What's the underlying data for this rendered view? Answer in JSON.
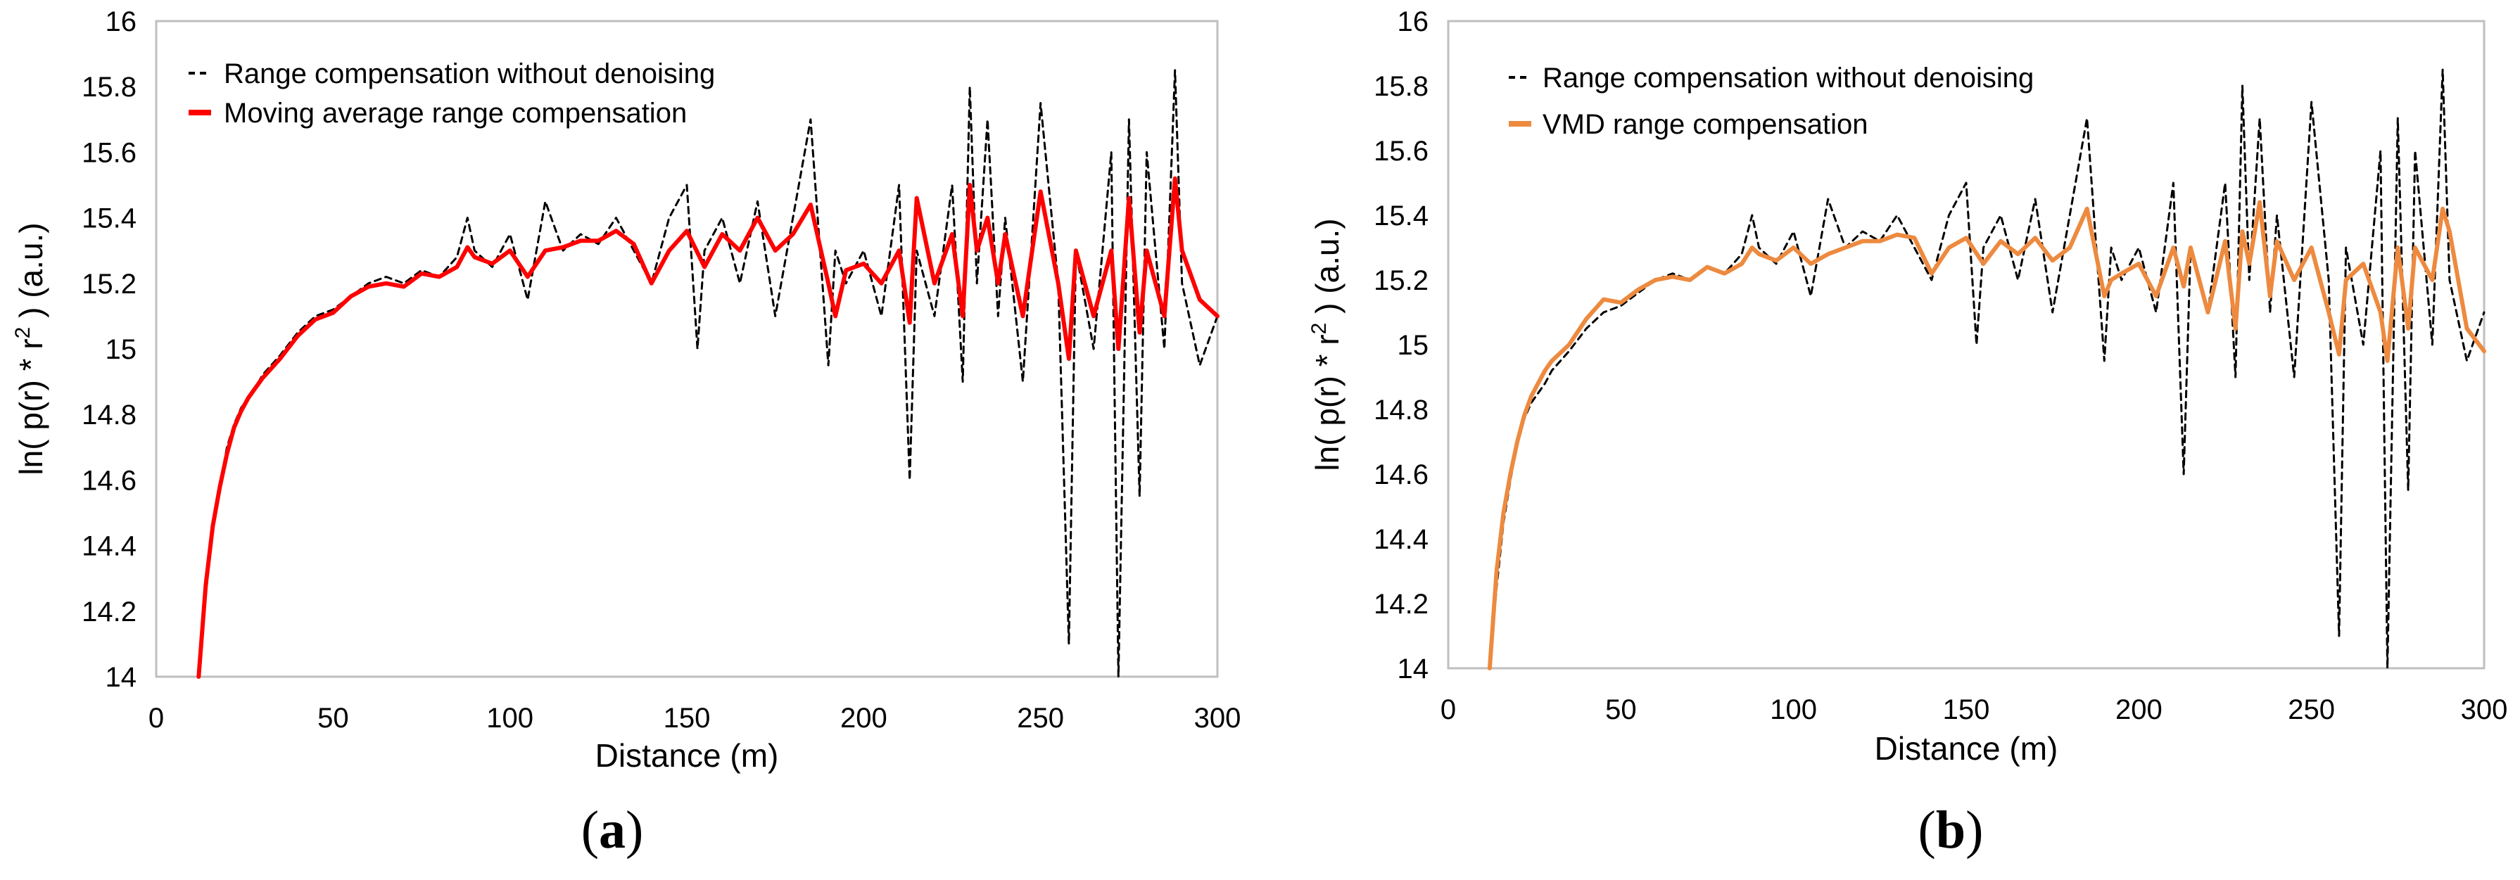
{
  "chart_data": [
    {
      "type": "line",
      "panel_label": "a",
      "title": "",
      "xlabel": "Distance (m)",
      "ylabel": "ln( p(r) * r",
      "ylabel_superscript": "2",
      "ylabel_suffix": " ) (a.u.)",
      "xlim": [
        0,
        300
      ],
      "ylim": [
        14,
        16
      ],
      "xticks": [
        0,
        50,
        100,
        150,
        200,
        250,
        300
      ],
      "yticks": [
        14,
        14.2,
        14.4,
        14.6,
        14.8,
        15,
        15.2,
        15.4,
        15.6,
        15.8,
        16
      ],
      "grid": false,
      "legend": "top-left",
      "series": [
        {
          "name": "Range compensation without denoising",
          "color": "#000000",
          "style": "dashed",
          "x": [
            12,
            14,
            16,
            18,
            20,
            22,
            24,
            26,
            28,
            30,
            35,
            40,
            45,
            50,
            55,
            60,
            65,
            70,
            75,
            80,
            85,
            88,
            90,
            95,
            100,
            105,
            110,
            115,
            120,
            125,
            130,
            135,
            140,
            145,
            150,
            153,
            155,
            160,
            165,
            170,
            175,
            180,
            185,
            190,
            192,
            195,
            200,
            205,
            210,
            213,
            215,
            220,
            225,
            228,
            230,
            232,
            235,
            238,
            240,
            245,
            250,
            255,
            258,
            260,
            265,
            270,
            272,
            275,
            278,
            280,
            285,
            288,
            290,
            295,
            300
          ],
          "values": [
            14.0,
            14.25,
            14.45,
            14.58,
            14.7,
            14.77,
            14.82,
            14.85,
            14.88,
            14.92,
            14.98,
            15.05,
            15.1,
            15.12,
            15.16,
            15.2,
            15.22,
            15.2,
            15.24,
            15.22,
            15.28,
            15.4,
            15.3,
            15.25,
            15.35,
            15.15,
            15.45,
            15.3,
            15.35,
            15.32,
            15.4,
            15.3,
            15.2,
            15.4,
            15.5,
            15.0,
            15.3,
            15.4,
            15.2,
            15.45,
            15.1,
            15.4,
            15.7,
            14.95,
            15.3,
            15.2,
            15.3,
            15.1,
            15.5,
            14.6,
            15.3,
            15.1,
            15.5,
            14.9,
            15.8,
            15.2,
            15.7,
            15.1,
            15.4,
            14.9,
            15.75,
            15.2,
            14.1,
            15.3,
            15.0,
            15.6,
            14.0,
            15.7,
            14.55,
            15.6,
            15.0,
            15.85,
            15.2,
            14.95,
            15.1
          ]
        },
        {
          "name": "Moving average range compensation",
          "color": "#ff0000",
          "style": "solid",
          "x": [
            12,
            14,
            16,
            18,
            20,
            22,
            24,
            26,
            28,
            30,
            35,
            40,
            45,
            50,
            55,
            60,
            65,
            70,
            75,
            80,
            85,
            88,
            90,
            95,
            100,
            105,
            110,
            115,
            120,
            125,
            130,
            135,
            140,
            145,
            150,
            155,
            160,
            165,
            170,
            175,
            180,
            185,
            190,
            192,
            195,
            200,
            205,
            210,
            213,
            215,
            220,
            225,
            228,
            230,
            232,
            235,
            238,
            240,
            245,
            250,
            255,
            258,
            260,
            265,
            270,
            272,
            275,
            278,
            280,
            285,
            288,
            290,
            295,
            300
          ],
          "values": [
            14.0,
            14.28,
            14.46,
            14.58,
            14.68,
            14.76,
            14.81,
            14.85,
            14.88,
            14.91,
            14.97,
            15.04,
            15.09,
            15.11,
            15.16,
            15.19,
            15.2,
            15.19,
            15.23,
            15.22,
            15.25,
            15.31,
            15.28,
            15.26,
            15.3,
            15.22,
            15.3,
            15.31,
            15.33,
            15.33,
            15.36,
            15.32,
            15.2,
            15.3,
            15.36,
            15.25,
            15.35,
            15.3,
            15.4,
            15.3,
            15.35,
            15.44,
            15.2,
            15.1,
            15.24,
            15.26,
            15.2,
            15.3,
            15.08,
            15.46,
            15.2,
            15.35,
            15.1,
            15.5,
            15.3,
            15.4,
            15.2,
            15.35,
            15.1,
            15.48,
            15.2,
            14.97,
            15.3,
            15.1,
            15.3,
            15.0,
            15.46,
            15.05,
            15.3,
            15.1,
            15.52,
            15.3,
            15.15,
            15.1
          ]
        }
      ]
    },
    {
      "type": "line",
      "panel_label": "b",
      "title": "",
      "xlabel": "Distance (m)",
      "ylabel": "ln( p(r) * r",
      "ylabel_superscript": "2",
      "ylabel_suffix": " ) (a.u.)",
      "xlim": [
        0,
        300
      ],
      "ylim": [
        14,
        16
      ],
      "xticks": [
        0,
        50,
        100,
        150,
        200,
        250,
        300
      ],
      "yticks": [
        14,
        14.2,
        14.4,
        14.6,
        14.8,
        15,
        15.2,
        15.4,
        15.6,
        15.8,
        16
      ],
      "grid": false,
      "legend": "top-left",
      "series": [
        {
          "name": "Range compensation without denoising",
          "color": "#000000",
          "style": "dashed",
          "x": [
            12,
            14,
            16,
            18,
            20,
            22,
            24,
            26,
            28,
            30,
            35,
            40,
            45,
            50,
            55,
            60,
            65,
            70,
            75,
            80,
            85,
            88,
            90,
            95,
            100,
            105,
            110,
            115,
            120,
            125,
            130,
            135,
            140,
            145,
            150,
            153,
            155,
            160,
            165,
            170,
            175,
            180,
            185,
            190,
            192,
            195,
            200,
            205,
            210,
            213,
            215,
            220,
            225,
            228,
            230,
            232,
            235,
            238,
            240,
            245,
            250,
            255,
            258,
            260,
            265,
            270,
            272,
            275,
            278,
            280,
            285,
            288,
            290,
            295,
            300
          ],
          "values": [
            14.0,
            14.25,
            14.45,
            14.58,
            14.7,
            14.77,
            14.82,
            14.85,
            14.88,
            14.92,
            14.98,
            15.05,
            15.1,
            15.12,
            15.16,
            15.2,
            15.22,
            15.2,
            15.24,
            15.22,
            15.28,
            15.4,
            15.3,
            15.25,
            15.35,
            15.15,
            15.45,
            15.3,
            15.35,
            15.32,
            15.4,
            15.3,
            15.2,
            15.4,
            15.5,
            15.0,
            15.3,
            15.4,
            15.2,
            15.45,
            15.1,
            15.4,
            15.7,
            14.95,
            15.3,
            15.2,
            15.3,
            15.1,
            15.5,
            14.6,
            15.3,
            15.1,
            15.5,
            14.9,
            15.8,
            15.2,
            15.7,
            15.1,
            15.4,
            14.9,
            15.75,
            15.2,
            14.1,
            15.3,
            15.0,
            15.6,
            14.0,
            15.7,
            14.55,
            15.6,
            15.0,
            15.85,
            15.2,
            14.95,
            15.1
          ]
        },
        {
          "name": "VMD range compensation",
          "color": "#ed8a3f",
          "style": "solid",
          "x": [
            12,
            14,
            16,
            18,
            20,
            22,
            24,
            26,
            28,
            30,
            35,
            40,
            45,
            50,
            55,
            60,
            65,
            70,
            75,
            80,
            85,
            88,
            90,
            95,
            100,
            105,
            110,
            115,
            120,
            125,
            130,
            135,
            140,
            145,
            150,
            155,
            160,
            165,
            170,
            175,
            180,
            185,
            190,
            192,
            195,
            200,
            205,
            210,
            213,
            215,
            220,
            225,
            228,
            230,
            232,
            235,
            238,
            240,
            245,
            250,
            255,
            258,
            260,
            265,
            270,
            272,
            275,
            278,
            280,
            285,
            288,
            290,
            295,
            300
          ],
          "values": [
            14.0,
            14.3,
            14.48,
            14.6,
            14.7,
            14.78,
            14.84,
            14.88,
            14.92,
            14.95,
            15.0,
            15.08,
            15.14,
            15.13,
            15.17,
            15.2,
            15.21,
            15.2,
            15.24,
            15.22,
            15.25,
            15.3,
            15.28,
            15.26,
            15.3,
            15.25,
            15.28,
            15.3,
            15.32,
            15.32,
            15.34,
            15.33,
            15.22,
            15.3,
            15.33,
            15.25,
            15.32,
            15.28,
            15.33,
            15.26,
            15.3,
            15.42,
            15.15,
            15.2,
            15.22,
            15.25,
            15.15,
            15.3,
            15.18,
            15.3,
            15.1,
            15.32,
            15.05,
            15.35,
            15.25,
            15.44,
            15.15,
            15.32,
            15.2,
            15.3,
            15.1,
            14.97,
            15.2,
            15.25,
            15.1,
            14.95,
            15.3,
            15.05,
            15.3,
            15.2,
            15.42,
            15.35,
            15.05,
            14.98
          ]
        }
      ]
    }
  ]
}
